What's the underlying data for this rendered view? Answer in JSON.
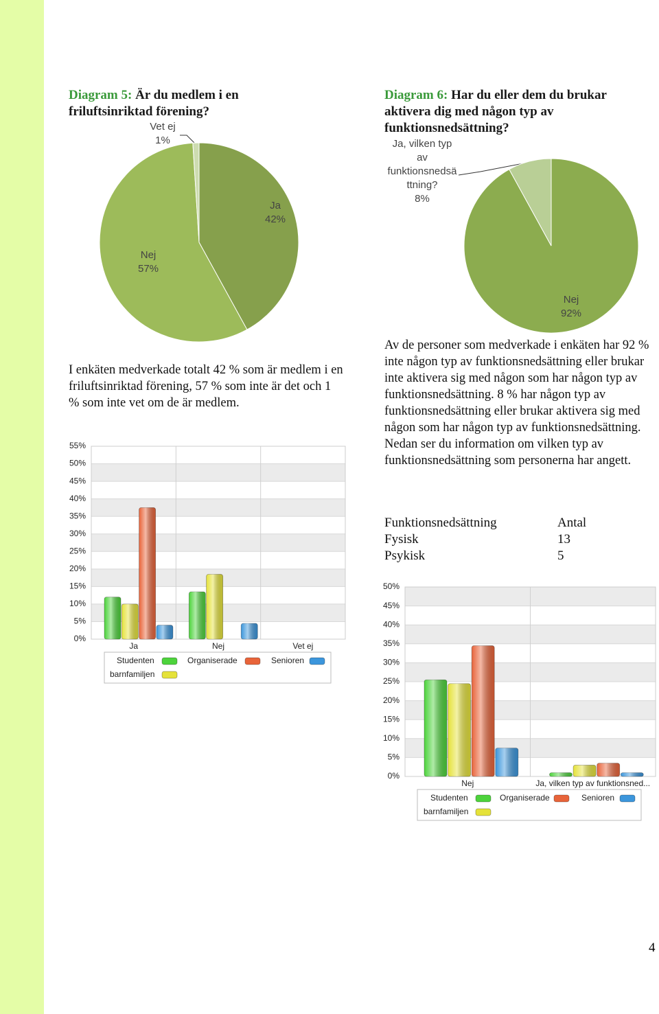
{
  "chart_data": [
    {
      "type": "pie",
      "title_label": "Diagram 5:",
      "title": "Är du medlem i en friluftsinriktad förening?",
      "categories": [
        "Ja",
        "Nej",
        "Vet ej"
      ],
      "values": [
        42,
        57,
        1
      ],
      "value_labels": [
        "42%",
        "57%",
        "1%"
      ],
      "colors": [
        "#86a04c",
        "#9dbb5a",
        "#cddcb0"
      ]
    },
    {
      "type": "bar",
      "categories": [
        "Ja",
        "Nej",
        "Vet ej"
      ],
      "series": [
        {
          "name": "Studenten",
          "color": "#4dd33c",
          "values": [
            12,
            13.5,
            0
          ]
        },
        {
          "name": "barnfamiljen",
          "color": "#e5e23a",
          "values": [
            10,
            18.5,
            0
          ]
        },
        {
          "name": "Organiserade",
          "color": "#e8643a",
          "values": [
            37.5,
            0,
            0
          ]
        },
        {
          "name": "Senioren",
          "color": "#3c96dc",
          "values": [
            4,
            4.5,
            0
          ]
        }
      ],
      "ylim": [
        0,
        55
      ],
      "yticks": [
        {
          "value": 0,
          "label": "0%"
        },
        {
          "value": 5,
          "label": "5%"
        },
        {
          "value": 10,
          "label": "10%"
        },
        {
          "value": 15,
          "label": "15%"
        },
        {
          "value": 20,
          "label": "20%"
        },
        {
          "value": 25,
          "label": "25%"
        },
        {
          "value": 30,
          "label": "30%"
        },
        {
          "value": 35,
          "label": "35%"
        },
        {
          "value": 40,
          "label": "40%"
        },
        {
          "value": 45,
          "label": "45%"
        },
        {
          "value": 50,
          "label": "50%"
        },
        {
          "value": 55,
          "label": "55%"
        }
      ],
      "grid": true
    },
    {
      "type": "pie",
      "title_label": "Diagram 6:",
      "title": "Har du eller dem du brukar aktivera dig med någon typ av funktionsnedsättning?",
      "categories": [
        "Nej",
        "Ja, vilken typ av funktionsnedsättning?"
      ],
      "values": [
        92,
        8
      ],
      "value_labels": [
        "92%",
        "8%"
      ],
      "colors": [
        "#8cac4f",
        "#b9cf96"
      ]
    },
    {
      "type": "bar",
      "categories": [
        "Nej",
        "Ja, vilken typ av funktionsned..."
      ],
      "series": [
        {
          "name": "Studenten",
          "color": "#4dd33c",
          "values": [
            25.5,
            1
          ]
        },
        {
          "name": "barnfamiljen",
          "color": "#e5e23a",
          "values": [
            24.5,
            3
          ]
        },
        {
          "name": "Organiserade",
          "color": "#e8643a",
          "values": [
            34.5,
            3.5
          ]
        },
        {
          "name": "Senioren",
          "color": "#3c96dc",
          "values": [
            7.5,
            1
          ]
        }
      ],
      "ylim": [
        0,
        50
      ],
      "yticks": [
        {
          "value": 0,
          "label": "0%"
        },
        {
          "value": 5,
          "label": "5%"
        },
        {
          "value": 10,
          "label": "10%"
        },
        {
          "value": 15,
          "label": "15%"
        },
        {
          "value": 20,
          "label": "20%"
        },
        {
          "value": 25,
          "label": "25%"
        },
        {
          "value": 30,
          "label": "30%"
        },
        {
          "value": 35,
          "label": "35%"
        },
        {
          "value": 40,
          "label": "40%"
        },
        {
          "value": 45,
          "label": "45%"
        },
        {
          "value": 50,
          "label": "50%"
        }
      ],
      "grid": true
    }
  ],
  "paragraphs": [
    "I enkäten medverkade totalt 42 % som är medlem i en friluftsinriktad förening, 57 % som inte är det och 1 % som inte vet om de är medlem.",
    "Av de personer som medverkade i enkäten har 92 % inte någon typ av funktionsnedsättning eller brukar inte aktivera sig med någon som har någon typ av funktionsnedsättning. 8 % har någon typ av funktionsnedsättning eller brukar aktivera sig med någon som har någon typ av funktionsnedsättning. Nedan ser du information om vilken typ av funktionsnedsättning som personerna har angett."
  ],
  "table": {
    "header": [
      "Funktionsnedsättning",
      "Antal"
    ],
    "rows": [
      [
        "Fysisk",
        13
      ],
      [
        "Psykisk",
        5
      ]
    ]
  },
  "page_number": "4"
}
